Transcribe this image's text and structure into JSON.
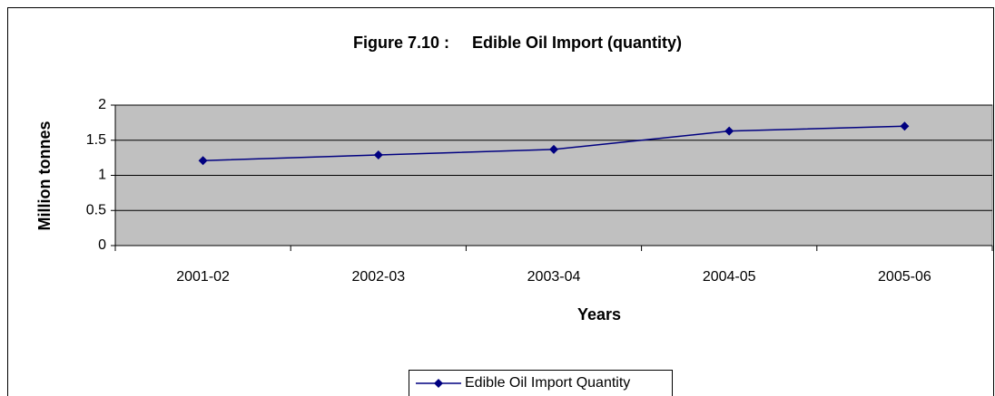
{
  "chart_data": {
    "type": "line",
    "title": "Figure 7.10 :     Edible Oil Import (quantity)",
    "x_label": "Years",
    "y_label": "Million tonnes",
    "categories": [
      "2001-02",
      "2002-03",
      "2003-04",
      "2004-05",
      "2005-06"
    ],
    "series": [
      {
        "name": "Edible Oil Import Quantity",
        "color": "#000080",
        "values": [
          1.21,
          1.29,
          1.37,
          1.63,
          1.7
        ]
      }
    ],
    "ylim": [
      0,
      2
    ],
    "yticks": [
      0,
      0.5,
      1,
      1.5,
      2
    ],
    "grid": true,
    "legend": "bottom"
  }
}
